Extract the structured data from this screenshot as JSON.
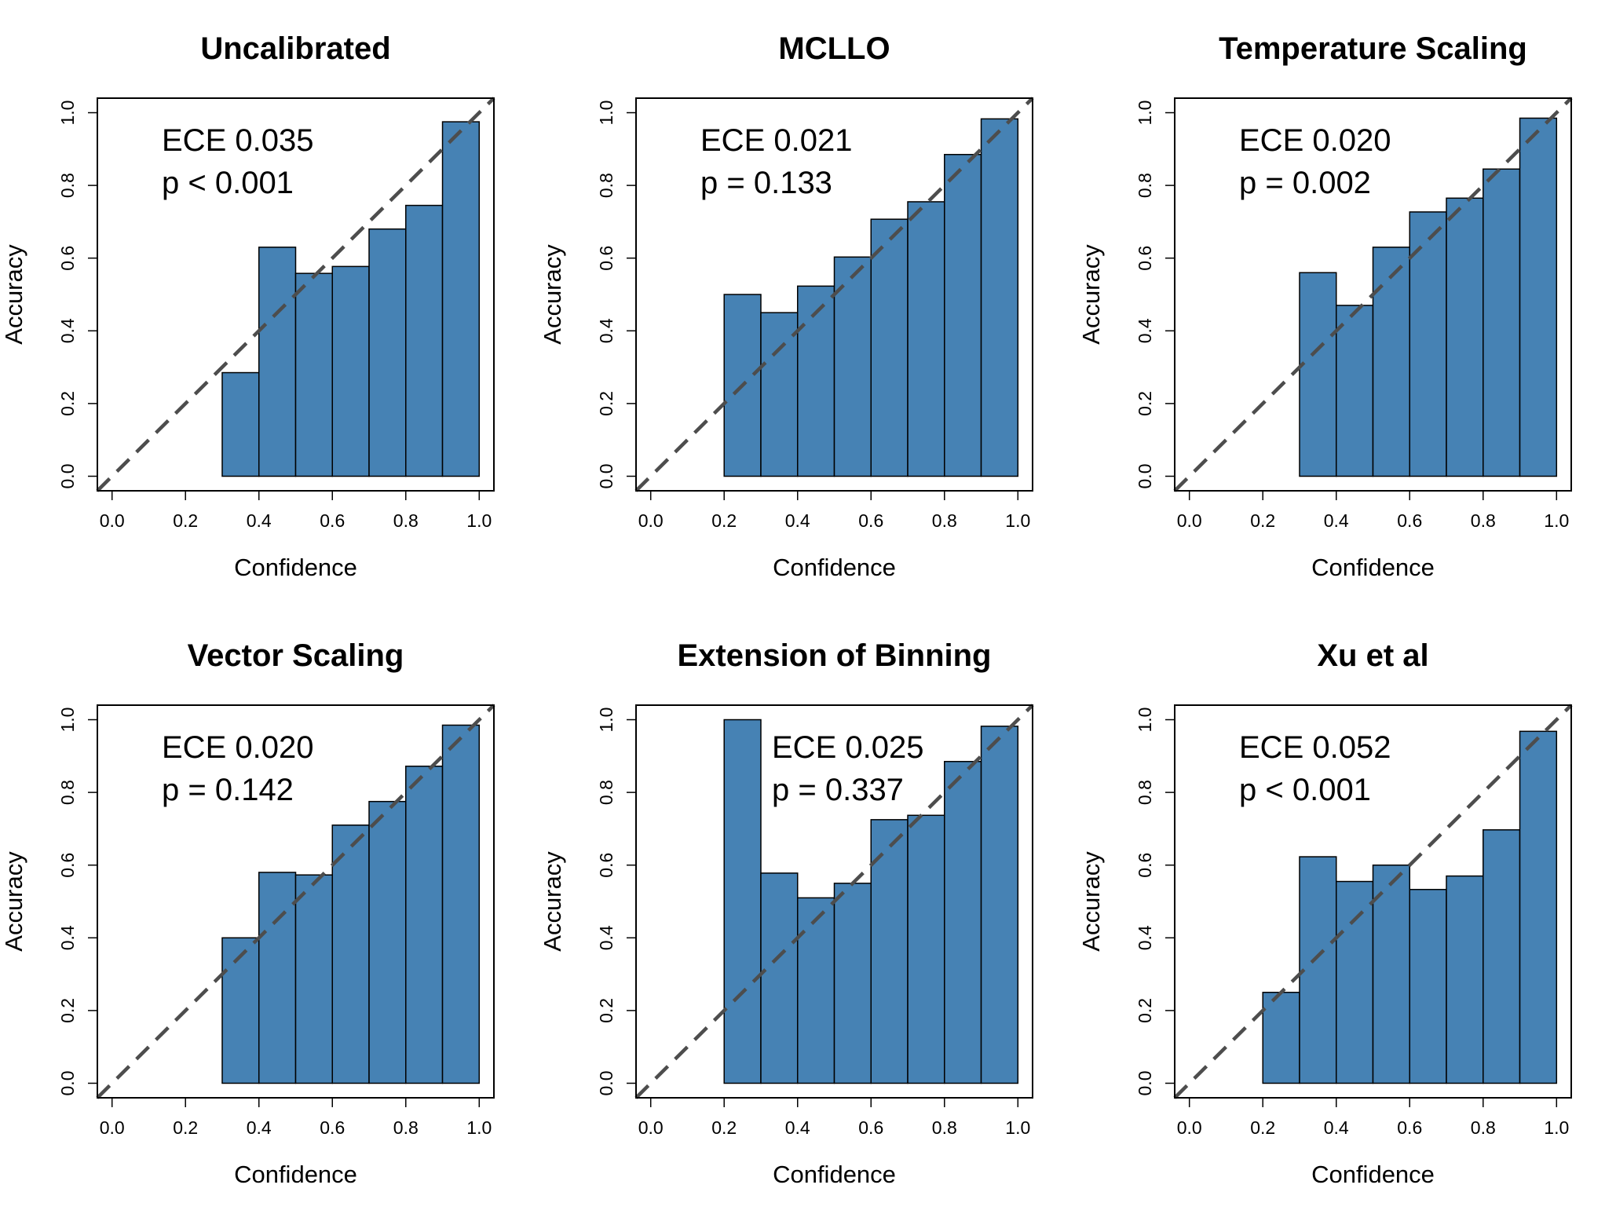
{
  "chart_data": [
    {
      "type": "bar",
      "title": "Uncalibrated",
      "xlabel": "Confidence",
      "ylabel": "Accuracy",
      "xlim": [
        0,
        1
      ],
      "ylim": [
        0,
        1
      ],
      "xticks": [
        "0.0",
        "0.2",
        "0.4",
        "0.6",
        "0.8",
        "1.0"
      ],
      "yticks": [
        "0.0",
        "0.2",
        "0.4",
        "0.6",
        "0.8",
        "1.0"
      ],
      "bin_edges": [
        0.0,
        0.1,
        0.2,
        0.3,
        0.4,
        0.5,
        0.6,
        0.7,
        0.8,
        0.9,
        1.0
      ],
      "values": [
        0,
        0,
        0,
        0.285,
        0.63,
        0.558,
        0.577,
        0.68,
        0.745,
        0.975
      ],
      "annotation": [
        "ECE 0.035",
        "p < 0.001"
      ],
      "diagonal": true,
      "bar_color": "#4682B4"
    },
    {
      "type": "bar",
      "title": "MCLLO",
      "xlabel": "Confidence",
      "ylabel": "Accuracy",
      "xlim": [
        0,
        1
      ],
      "ylim": [
        0,
        1
      ],
      "xticks": [
        "0.0",
        "0.2",
        "0.4",
        "0.6",
        "0.8",
        "1.0"
      ],
      "yticks": [
        "0.0",
        "0.2",
        "0.4",
        "0.6",
        "0.8",
        "1.0"
      ],
      "bin_edges": [
        0.0,
        0.1,
        0.2,
        0.3,
        0.4,
        0.5,
        0.6,
        0.7,
        0.8,
        0.9,
        1.0
      ],
      "values": [
        0,
        0,
        0.5,
        0.45,
        0.523,
        0.603,
        0.707,
        0.755,
        0.885,
        0.983
      ],
      "annotation": [
        "ECE 0.021",
        "p = 0.133"
      ],
      "diagonal": true,
      "bar_color": "#4682B4"
    },
    {
      "type": "bar",
      "title": "Temperature Scaling",
      "xlabel": "Confidence",
      "ylabel": "Accuracy",
      "xlim": [
        0,
        1
      ],
      "ylim": [
        0,
        1
      ],
      "xticks": [
        "0.0",
        "0.2",
        "0.4",
        "0.6",
        "0.8",
        "1.0"
      ],
      "yticks": [
        "0.0",
        "0.2",
        "0.4",
        "0.6",
        "0.8",
        "1.0"
      ],
      "bin_edges": [
        0.0,
        0.1,
        0.2,
        0.3,
        0.4,
        0.5,
        0.6,
        0.7,
        0.8,
        0.9,
        1.0
      ],
      "values": [
        0,
        0,
        0,
        0.56,
        0.47,
        0.63,
        0.727,
        0.765,
        0.845,
        0.985
      ],
      "annotation": [
        "ECE 0.020",
        "p = 0.002"
      ],
      "diagonal": true,
      "bar_color": "#4682B4"
    },
    {
      "type": "bar",
      "title": "Vector Scaling",
      "xlabel": "Confidence",
      "ylabel": "Accuracy",
      "xlim": [
        0,
        1
      ],
      "ylim": [
        0,
        1
      ],
      "xticks": [
        "0.0",
        "0.2",
        "0.4",
        "0.6",
        "0.8",
        "1.0"
      ],
      "yticks": [
        "0.0",
        "0.2",
        "0.4",
        "0.6",
        "0.8",
        "1.0"
      ],
      "bin_edges": [
        0.0,
        0.1,
        0.2,
        0.3,
        0.4,
        0.5,
        0.6,
        0.7,
        0.8,
        0.9,
        1.0
      ],
      "values": [
        0,
        0,
        0,
        0.4,
        0.58,
        0.573,
        0.71,
        0.775,
        0.872,
        0.985
      ],
      "annotation": [
        "ECE 0.020",
        "p = 0.142"
      ],
      "diagonal": true,
      "bar_color": "#4682B4"
    },
    {
      "type": "bar",
      "title": "Extension of Binning",
      "xlabel": "Confidence",
      "ylabel": "Accuracy",
      "xlim": [
        0,
        1
      ],
      "ylim": [
        0,
        1
      ],
      "xticks": [
        "0.0",
        "0.2",
        "0.4",
        "0.6",
        "0.8",
        "1.0"
      ],
      "yticks": [
        "0.0",
        "0.2",
        "0.4",
        "0.6",
        "0.8",
        "1.0"
      ],
      "bin_edges": [
        0.0,
        0.1,
        0.2,
        0.3,
        0.4,
        0.5,
        0.6,
        0.7,
        0.8,
        0.9,
        1.0
      ],
      "values": [
        0,
        0,
        1.0,
        0.578,
        0.51,
        0.55,
        0.725,
        0.737,
        0.885,
        0.982
      ],
      "annotation": [
        "ECE 0.025",
        "p = 0.337"
      ],
      "annotation_x": 0.33,
      "diagonal": true,
      "bar_color": "#4682B4"
    },
    {
      "type": "bar",
      "title": "Xu et al",
      "xlabel": "Confidence",
      "ylabel": "Accuracy",
      "xlim": [
        0,
        1
      ],
      "ylim": [
        0,
        1
      ],
      "xticks": [
        "0.0",
        "0.2",
        "0.4",
        "0.6",
        "0.8",
        "1.0"
      ],
      "yticks": [
        "0.0",
        "0.2",
        "0.4",
        "0.6",
        "0.8",
        "1.0"
      ],
      "bin_edges": [
        0.0,
        0.1,
        0.2,
        0.3,
        0.4,
        0.5,
        0.6,
        0.7,
        0.8,
        0.9,
        1.0
      ],
      "values": [
        0,
        0,
        0.25,
        0.623,
        0.555,
        0.6,
        0.533,
        0.57,
        0.697,
        0.968
      ],
      "annotation": [
        "ECE 0.052",
        "p < 0.001"
      ],
      "diagonal": true,
      "bar_color": "#4682B4"
    }
  ]
}
